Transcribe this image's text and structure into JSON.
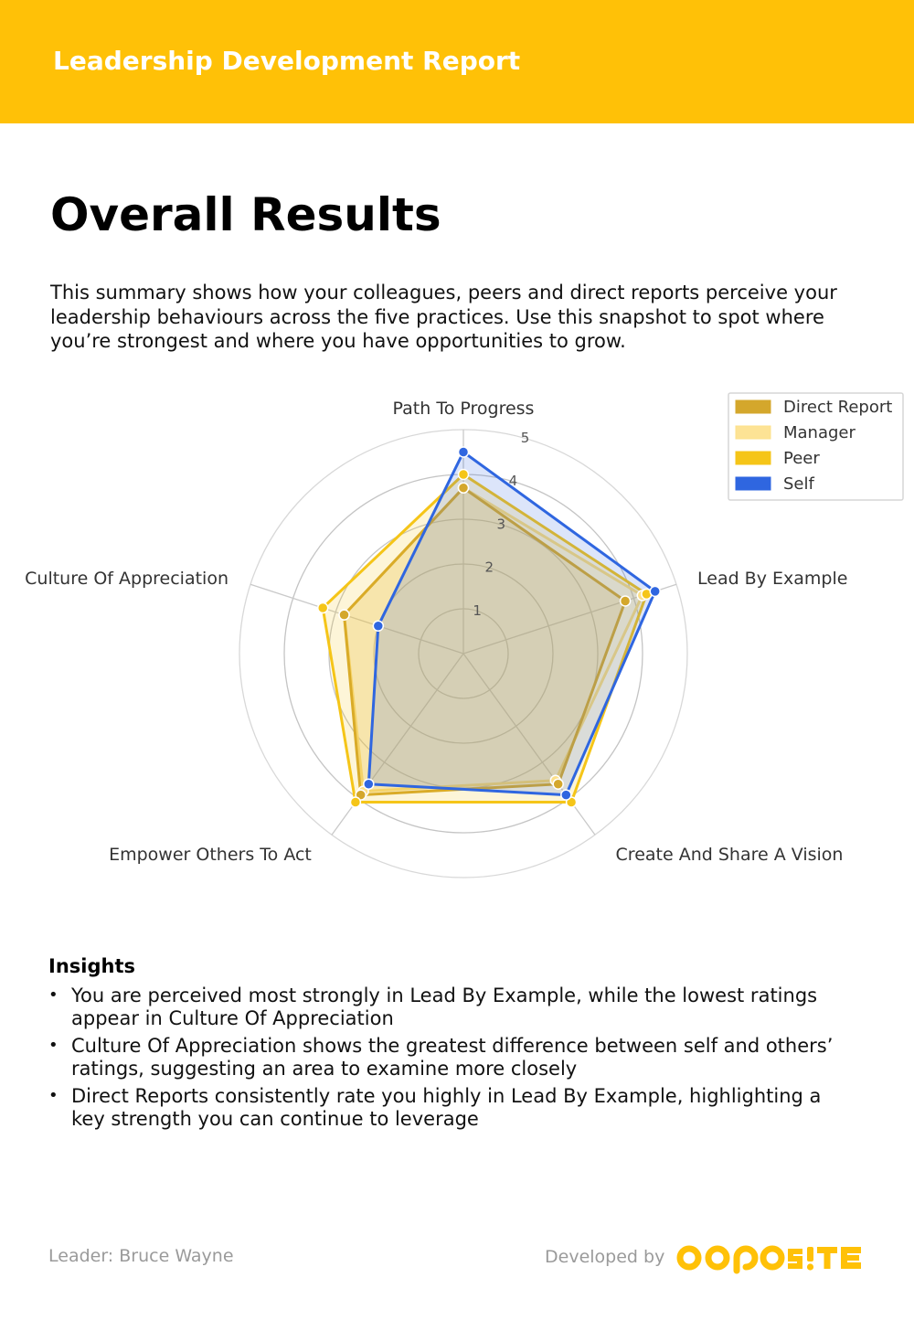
{
  "header": {
    "title": "Leadership Development Report"
  },
  "page": {
    "title": "Overall Results",
    "intro": "This summary shows how your colleagues, peers and direct reports perceive your leadership behaviours across the five practices. Use this snapshot to spot where you’re strongest and where you have opportunities to grow."
  },
  "chart_data": {
    "type": "radar",
    "categories": [
      "Path To Progress",
      "Lead By Example",
      "Create And Share A Vision",
      "Empower Others To Act",
      "Culture Of Appreciation"
    ],
    "rlim": [
      0,
      5
    ],
    "ticks": [
      "1",
      "2",
      "3",
      "4",
      "5"
    ],
    "grid": true,
    "legend_position": "top-right",
    "series": [
      {
        "name": "Direct Report",
        "values": [
          3.7,
          3.8,
          3.6,
          3.9,
          2.8
        ],
        "color": "#d4a72c",
        "fill": "#d4a72c"
      },
      {
        "name": "Manager",
        "values": [
          3.7,
          4.2,
          3.5,
          3.8,
          2.8
        ],
        "color": "#fde08a",
        "fill": "#fde08a"
      },
      {
        "name": "Peer",
        "values": [
          4.0,
          4.3,
          4.1,
          4.1,
          3.3
        ],
        "color": "#f5c518",
        "fill": "#f5c518"
      },
      {
        "name": "Self",
        "values": [
          4.5,
          4.5,
          3.9,
          3.6,
          2.0
        ],
        "color": "#2f66e0",
        "fill": "#2f66e0"
      }
    ]
  },
  "insights": {
    "title": "Insights",
    "items": [
      "You are perceived most strongly in Lead By Example, while the lowest ratings appear in Culture Of Appreciation",
      "Culture Of Appreciation shows the greatest difference between self and others’ ratings, suggesting an area to examine more closely",
      "Direct Reports consistently rate you highly in Lead By Example, highlighting a key strength you can continue to leverage"
    ]
  },
  "footer": {
    "leader": "Leader: Bruce Wayne",
    "developed_by": "Developed by",
    "logo_text": "OPPOSITE",
    "logo_color": "#ffc107"
  },
  "colors": {
    "accent": "#ffc107"
  }
}
